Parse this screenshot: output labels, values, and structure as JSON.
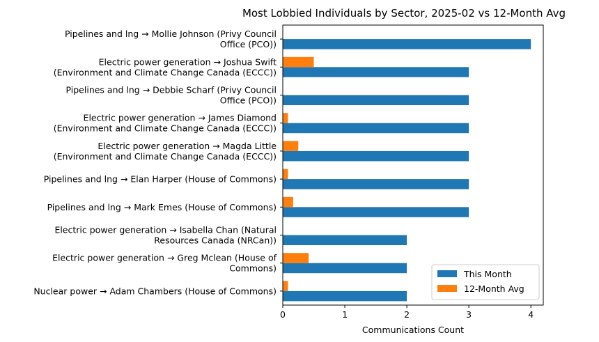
{
  "chart_data": {
    "type": "bar",
    "orientation": "horizontal",
    "title": "Most Lobbied Individuals by Sector, 2025-02 vs 12-Month Avg",
    "xlabel": "Communications Count",
    "ylabel": "",
    "xlim": [
      0,
      4.2
    ],
    "xticks": [
      "0",
      "1",
      "2",
      "3",
      "4"
    ],
    "categories": [
      [
        "Pipelines and lng → Mollie Johnson (Privy Council",
        "Office (PCO))"
      ],
      [
        "Electric power generation → Joshua Swift",
        "(Environment and Climate Change Canada (ECCC))"
      ],
      [
        "Pipelines and lng → Debbie Scharf (Privy Council",
        "Office (PCO))"
      ],
      [
        "Electric power generation → James Diamond",
        "(Environment and Climate Change Canada (ECCC))"
      ],
      [
        "Electric power generation → Magda Little",
        "(Environment and Climate Change Canada (ECCC))"
      ],
      [
        "Pipelines and lng → Elan Harper (House of Commons)"
      ],
      [
        "Pipelines and lng → Mark Emes (House of Commons)"
      ],
      [
        "Electric power generation → Isabella Chan (Natural",
        "Resources Canada (NRCan))"
      ],
      [
        "Electric power generation → Greg Mclean (House of",
        "Commons)"
      ],
      [
        "Nuclear power → Adam Chambers (House of Commons)"
      ]
    ],
    "series": [
      {
        "name": "This Month",
        "color": "#1f77b4",
        "values": [
          4,
          3,
          3,
          3,
          3,
          3,
          3,
          2,
          2,
          2
        ]
      },
      {
        "name": "12-Month Avg",
        "color": "#ff7f0e",
        "values": [
          0,
          0.5,
          0,
          0.083,
          0.25,
          0.083,
          0.167,
          0,
          0.417,
          0.083
        ]
      }
    ],
    "legend_position": "lower-right",
    "grid": false
  }
}
